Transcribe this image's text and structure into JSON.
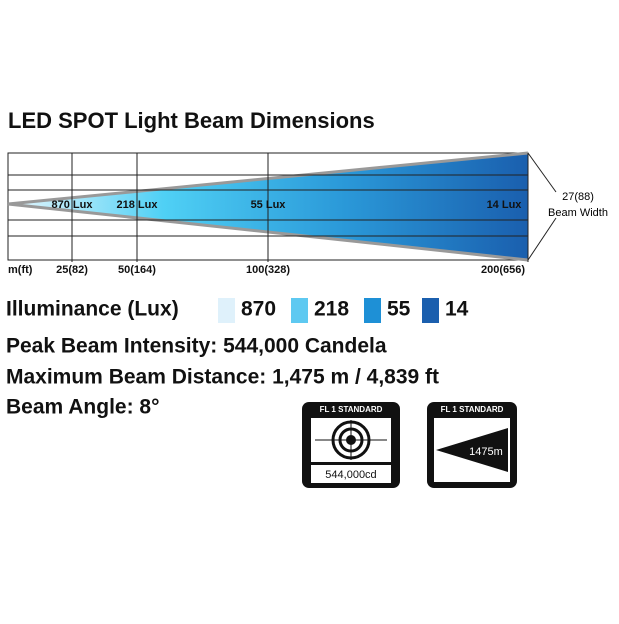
{
  "title": "LED SPOT Light Beam Dimensions",
  "beam": {
    "lux_labels": [
      "870 Lux",
      "218 Lux",
      "55 Lux",
      "14 Lux"
    ],
    "distances": [
      "m(ft)",
      "25(82)",
      "50(164)",
      "100(328)",
      "200(656)"
    ],
    "width_value": "27(88)",
    "width_label": "Beam Width"
  },
  "legend": {
    "title": "Illuminance (Lux)",
    "items": [
      {
        "label": "870",
        "color": "#dff1fb"
      },
      {
        "label": "218",
        "color": "#5ec9f1"
      },
      {
        "label": "55",
        "color": "#1e90d6"
      },
      {
        "label": "14",
        "color": "#1b5fae"
      }
    ]
  },
  "specs": [
    "Peak Beam Intensity: 544,000 Candela",
    "Maximum Beam Distance: 1,475 m / 4,839 ft",
    "Beam Angle: 8°"
  ],
  "badges": [
    {
      "header": "FL 1 STANDARD",
      "value": "544,000cd"
    },
    {
      "header": "FL 1 STANDARD",
      "value": "1475m"
    }
  ]
}
